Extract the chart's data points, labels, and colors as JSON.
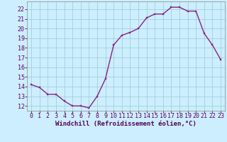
{
  "x": [
    0,
    1,
    2,
    3,
    4,
    5,
    6,
    7,
    8,
    9,
    10,
    11,
    12,
    13,
    14,
    15,
    16,
    17,
    18,
    19,
    20,
    21,
    22,
    23
  ],
  "y": [
    14.2,
    13.9,
    13.2,
    13.2,
    12.5,
    12.0,
    12.0,
    11.8,
    13.0,
    14.8,
    18.3,
    19.3,
    19.6,
    20.0,
    21.1,
    21.5,
    21.5,
    22.2,
    22.2,
    21.8,
    21.8,
    19.5,
    18.3,
    16.8
  ],
  "line_color": "#882288",
  "marker": "s",
  "marker_size": 2,
  "bg_color": "#cceeff",
  "grid_color": "#99cccc",
  "xlabel": "Windchill (Refroidissement éolien,°C)",
  "xlabel_fontsize": 6.5,
  "ylabel_labels": [
    "12",
    "13",
    "14",
    "15",
    "16",
    "17",
    "18",
    "19",
    "20",
    "21",
    "22"
  ],
  "ylim": [
    11.5,
    22.8
  ],
  "xlim": [
    -0.5,
    23.5
  ],
  "yticks": [
    12,
    13,
    14,
    15,
    16,
    17,
    18,
    19,
    20,
    21,
    22
  ],
  "xticks": [
    0,
    1,
    2,
    3,
    4,
    5,
    6,
    7,
    8,
    9,
    10,
    11,
    12,
    13,
    14,
    15,
    16,
    17,
    18,
    19,
    20,
    21,
    22,
    23
  ],
  "tick_fontsize": 6,
  "line_width": 1.0
}
